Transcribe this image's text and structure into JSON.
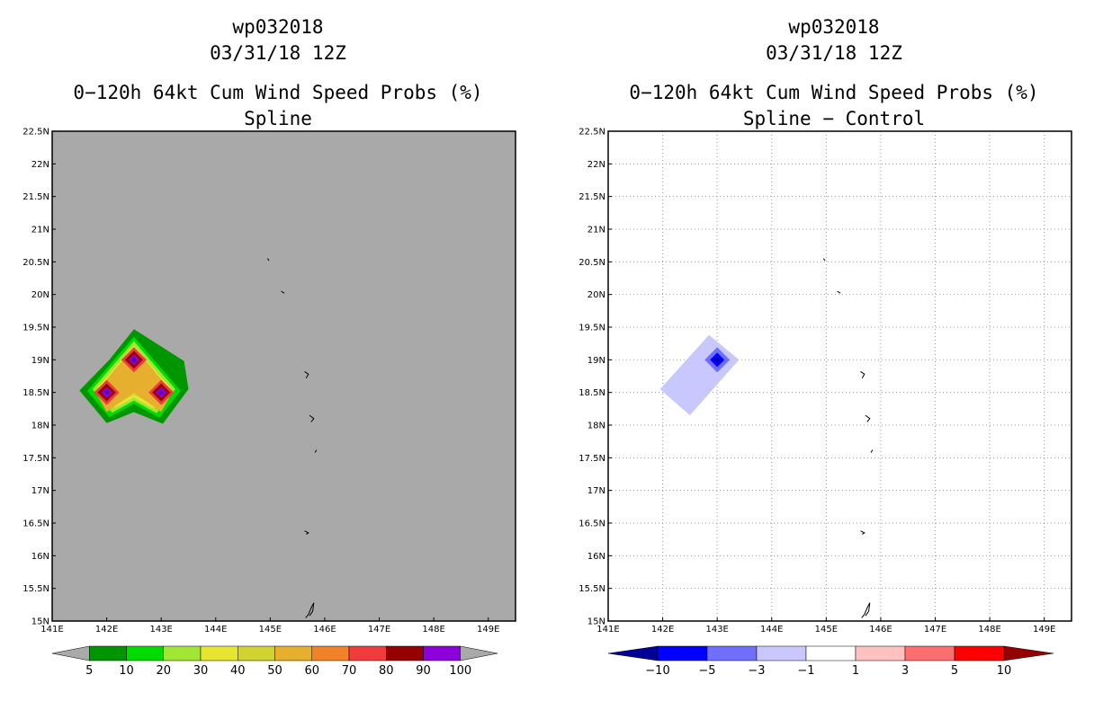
{
  "panels": [
    {
      "storm_id": "wp032018",
      "datetime": "03/31/18 12Z",
      "product": "0−120h 64kt Cum Wind Speed Probs (%)",
      "subtitle": "Spline",
      "colorbar": {
        "labels": [
          "5",
          "10",
          "20",
          "30",
          "40",
          "50",
          "60",
          "70",
          "80",
          "90",
          "100"
        ],
        "colors": [
          "#a9a9a9",
          "#009600",
          "#00dc00",
          "#a0e632",
          "#e6e632",
          "#d2d232",
          "#e6af2d",
          "#f08228",
          "#f03c3c",
          "#960000",
          "#8c00dc",
          "#a9a9a9"
        ]
      }
    },
    {
      "storm_id": "wp032018",
      "datetime": "03/31/18 12Z",
      "product": "0−120h 64kt Cum Wind Speed Probs (%)",
      "subtitle": "Spline − Control",
      "colorbar": {
        "labels": [
          "−10",
          "−5",
          "−3",
          "−1",
          "1",
          "3",
          "5",
          "10"
        ],
        "colors": [
          "#000096",
          "#0000ff",
          "#6e6eff",
          "#c8c8ff",
          "#ffffff",
          "#ffc0c0",
          "#ff6e6e",
          "#ff0000",
          "#960000"
        ]
      }
    }
  ],
  "chart_data": [
    {
      "type": "heatmap",
      "title": "Spline",
      "units": "%",
      "x_range_lon": [
        141,
        149.5
      ],
      "y_range_lat": [
        15,
        22.5
      ],
      "x_ticks": [
        "141E",
        "142E",
        "143E",
        "144E",
        "145E",
        "146E",
        "147E",
        "148E",
        "149E"
      ],
      "y_ticks": [
        "15N",
        "15.5N",
        "16N",
        "16.5N",
        "17N",
        "17.5N",
        "18N",
        "18.5N",
        "19N",
        "19.5N",
        "20N",
        "20.5N",
        "21N",
        "21.5N",
        "22N",
        "22.5N"
      ],
      "background": "#a9a9a9",
      "gridlines": false,
      "peaks": [
        {
          "lon": 142.0,
          "lat": 18.5,
          "value": 100
        },
        {
          "lon": 142.5,
          "lat": 19.0,
          "value": 100
        },
        {
          "lon": 143.0,
          "lat": 18.5,
          "value": 100
        }
      ],
      "contour_levels": [
        5,
        10,
        20,
        30,
        40,
        50,
        60,
        70,
        80,
        90,
        100
      ]
    },
    {
      "type": "heatmap",
      "title": "Spline − Control",
      "units": "%",
      "x_range_lon": [
        141,
        149.5
      ],
      "y_range_lat": [
        15,
        22.5
      ],
      "x_ticks": [
        "141E",
        "142E",
        "143E",
        "144E",
        "145E",
        "146E",
        "147E",
        "148E",
        "149E"
      ],
      "y_ticks": [
        "15N",
        "15.5N",
        "16N",
        "16.5N",
        "17N",
        "17.5N",
        "18N",
        "18.5N",
        "19N",
        "19.5N",
        "20N",
        "20.5N",
        "21N",
        "21.5N",
        "22N",
        "22.5N"
      ],
      "background": "#ffffff",
      "gridlines": true,
      "peaks": [
        {
          "lon": 143.0,
          "lat": 19.0,
          "value": -10
        }
      ],
      "contour_levels": [
        -10,
        -5,
        -3,
        -1,
        1,
        3,
        5,
        10
      ]
    }
  ]
}
